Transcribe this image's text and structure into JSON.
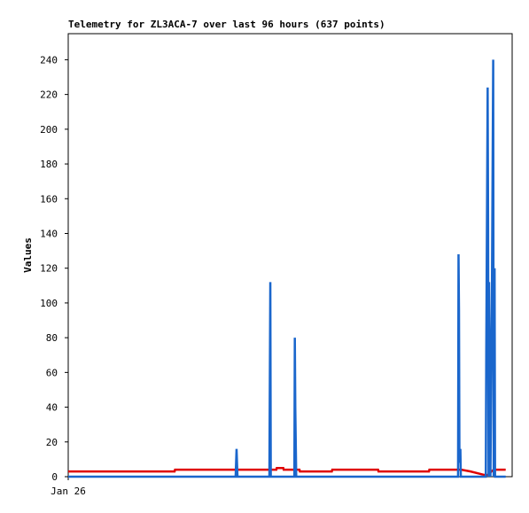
{
  "chart_data": {
    "type": "line",
    "title": "Telemetry for ZL3ACA-7 over last 96 hours (637 points)",
    "y_label": "Values",
    "xlim": [
      0,
      96
    ],
    "xticks": [
      {
        "value": 0,
        "label": "Jan 26"
      }
    ],
    "ylim": [
      0,
      255
    ],
    "yticks": [
      0,
      20,
      40,
      60,
      80,
      100,
      120,
      140,
      160,
      180,
      200,
      220,
      240
    ],
    "series": [
      {
        "color": "#e00000",
        "x": [
          0,
          23,
          23.1,
          45,
          45.1,
          46.5,
          46.6,
          50,
          50.1,
          57,
          57.1,
          67,
          67.1,
          78,
          78.1,
          85,
          87,
          90,
          91,
          91.5,
          92,
          94.6
        ],
        "values": [
          3,
          3,
          4,
          4,
          5,
          5,
          4,
          4,
          3,
          3,
          4,
          4,
          3,
          3,
          4,
          4,
          3,
          1,
          1,
          3,
          4,
          4
        ]
      },
      {
        "color": "#1a66cc",
        "x": [
          0,
          36.2,
          36.4,
          36.5,
          36.6,
          43.5,
          43.6,
          43.7,
          43.8,
          48.9,
          49.0,
          49.1,
          49.3,
          84.3,
          84.4,
          84.5,
          84.6,
          84.8,
          84.9,
          90.3,
          90.4,
          90.7,
          90.8,
          90.9,
          91.0,
          91.2,
          91.3,
          91.6,
          91.9,
          92.0,
          92.2,
          92.3,
          94.6
        ],
        "values": [
          0,
          0,
          16,
          8,
          0,
          0,
          56,
          112,
          0,
          0,
          80,
          40,
          0,
          0,
          128,
          96,
          8,
          16,
          0,
          0,
          72,
          224,
          144,
          0,
          112,
          48,
          0,
          96,
          240,
          0,
          120,
          0,
          0
        ]
      }
    ]
  }
}
